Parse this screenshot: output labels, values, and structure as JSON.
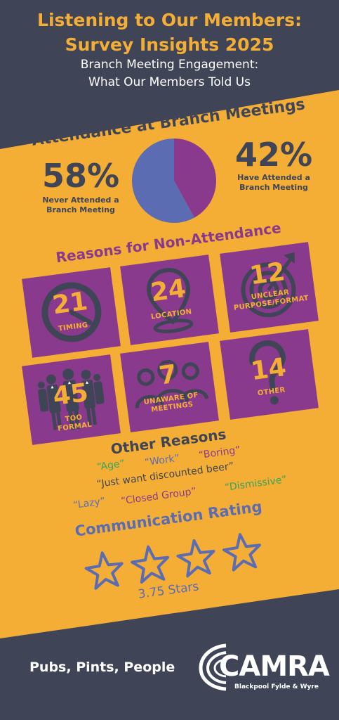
{
  "header": {
    "title_line1": "Listening to Our Members:",
    "title_line2": "Survey Insights 2025",
    "subtitle_line1": "Branch Meeting Engagement:",
    "subtitle_line2": "What Our Members Told Us"
  },
  "attendance": {
    "heading": "Attendance at Branch Meetings",
    "never_pct": "58%",
    "never_label_line1": "Never Attended a",
    "never_label_line2": "Branch Meeting",
    "have_pct": "42%",
    "have_label_line1": "Have Attended a",
    "have_label_line2": "Branch Meeting",
    "chart_data": {
      "type": "pie",
      "categories": [
        "Never Attended a Branch Meeting",
        "Have Attended a Branch Meeting"
      ],
      "values": [
        58,
        42
      ],
      "colors": [
        "#5b6cb3",
        "#8a3a8c"
      ]
    }
  },
  "reasons": {
    "heading": "Reasons for Non-Attendance",
    "tiles": [
      {
        "count": "21",
        "label_line1": "TIMING",
        "label_line2": "",
        "icon": "clock-icon"
      },
      {
        "count": "24",
        "label_line1": "LOCATION",
        "label_line2": "",
        "icon": "map-pin-icon"
      },
      {
        "count": "12",
        "label_line1": "UNCLEAR",
        "label_line2": "PURPOSE/FORMAT",
        "icon": "target-icon"
      },
      {
        "count": "45",
        "label_line1": "TOO",
        "label_line2": "FORMAL",
        "icon": "business-people-icon"
      },
      {
        "count": "7",
        "label_line1": "UNAWARE OF",
        "label_line2": "MEETINGS",
        "icon": "group-icon"
      },
      {
        "count": "14",
        "label_line1": "OTHER",
        "label_line2": "",
        "icon": "question-mark-icon"
      }
    ]
  },
  "other_reasons": {
    "heading": "Other Reasons",
    "quotes": [
      {
        "text": "“Age”",
        "color": "#3aa45b"
      },
      {
        "text": "“Work”",
        "color": "#5b6cb3"
      },
      {
        "text": "“Boring”",
        "color": "#8a3a8c"
      },
      {
        "text": "“Just want discounted beer”",
        "color": "#3f4456"
      },
      {
        "text": "“Lazy”",
        "color": "#5b6cb3"
      },
      {
        "text": "“Closed Group”",
        "color": "#8a3a8c"
      },
      {
        "text": "“Dismissive”",
        "color": "#3aa45b"
      }
    ]
  },
  "communication": {
    "heading": "Communication Rating",
    "rating_value": 3.75,
    "rating_max": 4,
    "rating_label": "3.75 Stars"
  },
  "footer": {
    "tagline": "Pubs, Pints, People",
    "logo_text": "CAMRA",
    "logo_sub": "Blackpool Fylde & Wyre"
  },
  "colors": {
    "navy": "#3f4456",
    "orange": "#f4ae35",
    "purple": "#8a3a8c",
    "blue": "#5b6cb3",
    "green": "#3aa45b"
  }
}
